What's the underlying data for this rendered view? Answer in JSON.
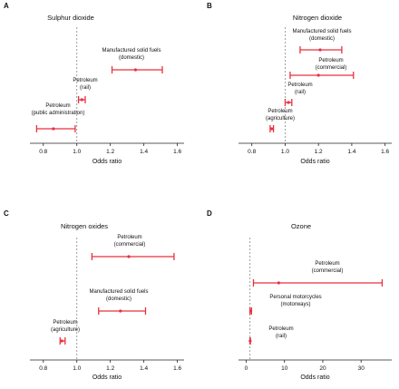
{
  "figure": {
    "accent": "#e8313f",
    "panels": [
      {
        "letter": "A",
        "title": "Sulphur dioxide",
        "xlabel": "Odds ratio",
        "ticks": [
          "0.8",
          "1.0",
          "1.2",
          "1.4",
          "1.6"
        ],
        "items": [
          {
            "lines": [
              "Manufactured solid fuels",
              "(domestic)"
            ],
            "or": 1.35,
            "lo": 1.21,
            "hi": 1.51
          },
          {
            "lines": [
              "Petroleum",
              "(rail)"
            ],
            "or": 1.03,
            "lo": 1.01,
            "hi": 1.05
          },
          {
            "lines": [
              "Petroleum",
              "(public administration)"
            ],
            "or": 0.86,
            "lo": 0.76,
            "hi": 0.99
          }
        ]
      },
      {
        "letter": "B",
        "title": "Nitrogen dioxide",
        "xlabel": "Odds ratio",
        "ticks": [
          "0.8",
          "1.0",
          "1.2",
          "1.4",
          "1.6"
        ],
        "items": [
          {
            "lines": [
              "Manufactured solid fuels",
              "(domestic)"
            ],
            "or": 1.21,
            "lo": 1.09,
            "hi": 1.34
          },
          {
            "lines": [
              "Petroleum",
              "(commercial)"
            ],
            "or": 1.2,
            "lo": 1.03,
            "hi": 1.41
          },
          {
            "lines": [
              "Petroleum",
              "(rail)"
            ],
            "or": 1.02,
            "lo": 1.0,
            "hi": 1.04
          },
          {
            "lines": [
              "Petroleum",
              "(agriculture)"
            ],
            "or": 0.92,
            "lo": 0.91,
            "hi": 0.93
          }
        ]
      },
      {
        "letter": "C",
        "title": "Nitrogen oxides",
        "xlabel": "Odds ratio",
        "ticks": [
          "0.8",
          "1.0",
          "1.2",
          "1.4",
          "1.6"
        ],
        "items": [
          {
            "lines": [
              "Petroleum",
              "(commercial)"
            ],
            "or": 1.31,
            "lo": 1.09,
            "hi": 1.58
          },
          {
            "lines": [
              "Manufactured solid fuels",
              "(domestic)"
            ],
            "or": 1.26,
            "lo": 1.13,
            "hi": 1.41
          },
          {
            "lines": [
              "Petroleum",
              "(agriculture)"
            ],
            "or": 0.91,
            "lo": 0.9,
            "hi": 0.93
          }
        ]
      },
      {
        "letter": "D",
        "title": "Ozone",
        "xlabel": "Odds ratio",
        "ticks": [
          "0",
          "10",
          "20",
          "30"
        ],
        "items": [
          {
            "lines": [
              "Petroleum",
              "(commercial)"
            ],
            "or": 8.5,
            "lo": 1.9,
            "hi": 35.5
          },
          {
            "lines": [
              "Personal motorcycles",
              "(motorways)"
            ],
            "or": 1.2,
            "lo": 1.0,
            "hi": 1.4
          },
          {
            "lines": [
              "Petroleum",
              "(rail)"
            ],
            "or": 1.05,
            "lo": 1.0,
            "hi": 1.1
          }
        ]
      }
    ]
  },
  "chart_data": [
    {
      "type": "scatter",
      "title": "Sulphur dioxide",
      "xlabel": "Odds ratio",
      "xlim": [
        0.72,
        1.64
      ],
      "reference_line": 1.0,
      "series": [
        {
          "name": "Manufactured solid fuels (domestic)",
          "estimate": 1.35,
          "ci": [
            1.21,
            1.51
          ]
        },
        {
          "name": "Petroleum (rail)",
          "estimate": 1.03,
          "ci": [
            1.01,
            1.05
          ]
        },
        {
          "name": "Petroleum (public administration)",
          "estimate": 0.86,
          "ci": [
            0.76,
            0.99
          ]
        }
      ]
    },
    {
      "type": "scatter",
      "title": "Nitrogen dioxide",
      "xlabel": "Odds ratio",
      "xlim": [
        0.72,
        1.64
      ],
      "reference_line": 1.0,
      "series": [
        {
          "name": "Manufactured solid fuels (domestic)",
          "estimate": 1.21,
          "ci": [
            1.09,
            1.34
          ]
        },
        {
          "name": "Petroleum (commercial)",
          "estimate": 1.2,
          "ci": [
            1.03,
            1.41
          ]
        },
        {
          "name": "Petroleum (rail)",
          "estimate": 1.02,
          "ci": [
            1.0,
            1.04
          ]
        },
        {
          "name": "Petroleum (agriculture)",
          "estimate": 0.92,
          "ci": [
            0.91,
            0.93
          ]
        }
      ]
    },
    {
      "type": "scatter",
      "title": "Nitrogen oxides",
      "xlabel": "Odds ratio",
      "xlim": [
        0.72,
        1.64
      ],
      "reference_line": 1.0,
      "series": [
        {
          "name": "Petroleum (commercial)",
          "estimate": 1.31,
          "ci": [
            1.09,
            1.58
          ]
        },
        {
          "name": "Manufactured solid fuels (domestic)",
          "estimate": 1.26,
          "ci": [
            1.13,
            1.41
          ]
        },
        {
          "name": "Petroleum (agriculture)",
          "estimate": 0.91,
          "ci": [
            0.9,
            0.93
          ]
        }
      ]
    },
    {
      "type": "scatter",
      "title": "Ozone",
      "xlabel": "Odds ratio",
      "xlim": [
        -2,
        38
      ],
      "reference_line": 1.0,
      "series": [
        {
          "name": "Petroleum (commercial)",
          "estimate": 8.5,
          "ci": [
            1.9,
            35.5
          ]
        },
        {
          "name": "Personal motorcycles (motorways)",
          "estimate": 1.2,
          "ci": [
            1.0,
            1.4
          ]
        },
        {
          "name": "Petroleum (rail)",
          "estimate": 1.05,
          "ci": [
            1.0,
            1.1
          ]
        }
      ]
    }
  ]
}
